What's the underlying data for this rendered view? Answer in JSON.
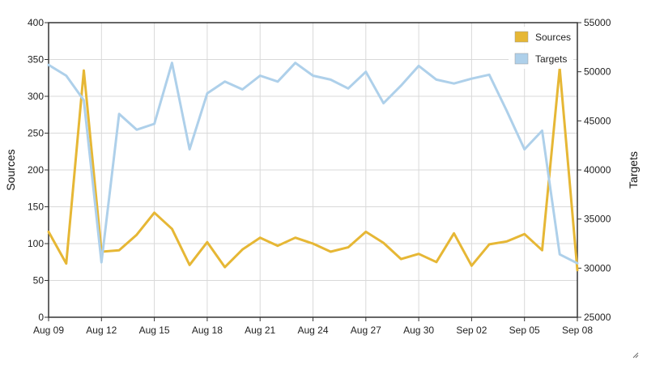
{
  "chart_data": {
    "type": "line",
    "x_tick_labels": [
      "Aug 09",
      "Aug 12",
      "Aug 15",
      "Aug 18",
      "Aug 21",
      "Aug 24",
      "Aug 27",
      "Aug 30",
      "Sep 02",
      "Sep 05",
      "Sep 08"
    ],
    "x": [
      "Aug 09",
      "Aug 10",
      "Aug 11",
      "Aug 12",
      "Aug 13",
      "Aug 14",
      "Aug 15",
      "Aug 16",
      "Aug 17",
      "Aug 18",
      "Aug 19",
      "Aug 20",
      "Aug 21",
      "Aug 22",
      "Aug 23",
      "Aug 24",
      "Aug 25",
      "Aug 26",
      "Aug 27",
      "Aug 28",
      "Aug 29",
      "Aug 30",
      "Aug 31",
      "Sep 01",
      "Sep 02",
      "Sep 03",
      "Sep 04",
      "Sep 05",
      "Sep 06",
      "Sep 07",
      "Sep 08"
    ],
    "y_left": {
      "label": "Sources",
      "range": [
        0,
        400
      ],
      "ticks": [
        0,
        50,
        100,
        150,
        200,
        250,
        300,
        350,
        400
      ]
    },
    "y_right": {
      "label": "Targets",
      "range": [
        25000,
        55000
      ],
      "ticks": [
        25000,
        30000,
        35000,
        40000,
        45000,
        50000,
        55000
      ]
    },
    "grid": true,
    "legend_position": "top-right",
    "series": [
      {
        "name": "Sources",
        "axis": "left",
        "color": "#e6b735",
        "values": [
          116,
          73,
          335,
          89,
          91,
          112,
          142,
          120,
          71,
          102,
          68,
          92,
          108,
          97,
          108,
          100,
          89,
          95,
          116,
          101,
          79,
          86,
          75,
          114,
          70,
          99,
          103,
          113,
          91,
          338,
          64
        ]
      },
      {
        "name": "Targets",
        "axis": "right",
        "color": "#aed0ea",
        "values": [
          50700,
          49600,
          47100,
          30600,
          45700,
          44100,
          44700,
          50900,
          42100,
          47800,
          49000,
          48200,
          49600,
          49000,
          50900,
          49600,
          49200,
          48300,
          50000,
          46800,
          48600,
          50600,
          49200,
          48800,
          49300,
          49700,
          46000,
          42100,
          44000,
          31400,
          30500
        ]
      }
    ]
  }
}
